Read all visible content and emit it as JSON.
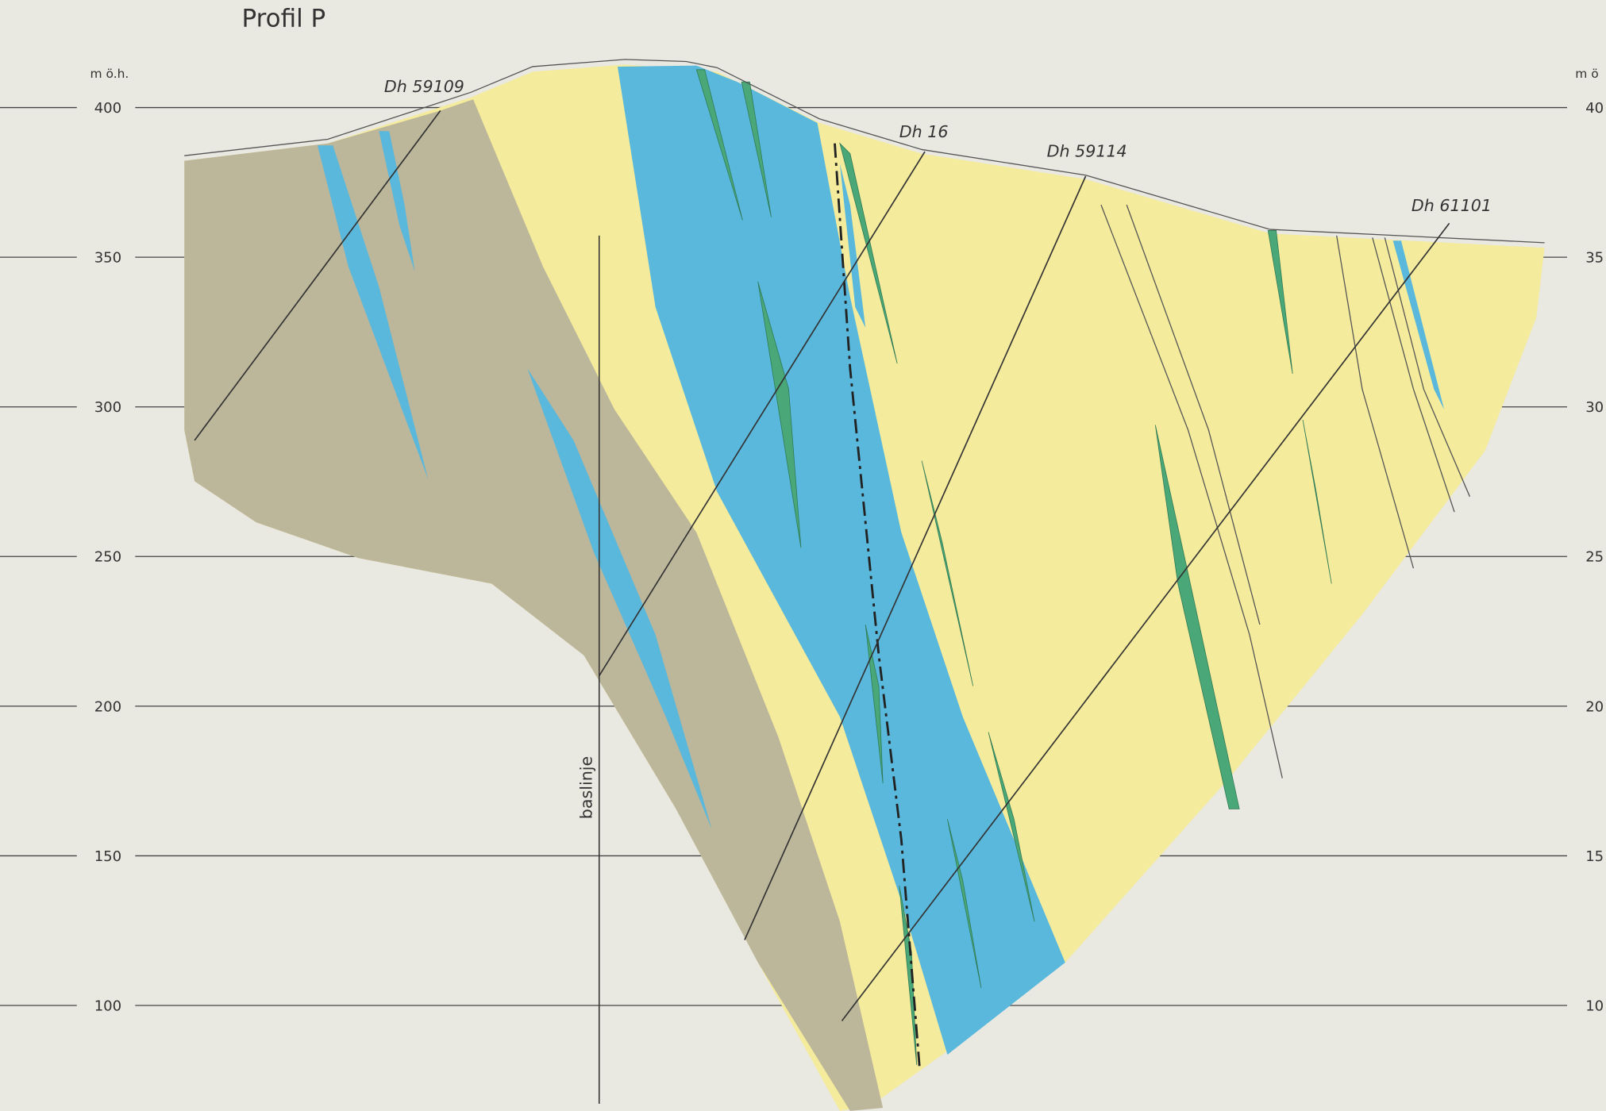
{
  "title": "Profil P",
  "left_axis": {
    "unit": "m ö.h.",
    "ticks": [
      400,
      350,
      300,
      250,
      200,
      150,
      100
    ]
  },
  "right_axis": {
    "unit": "m ö",
    "ticks": [
      "40",
      "35",
      "30",
      "25",
      "20",
      "15",
      "10"
    ]
  },
  "drillholes": [
    {
      "label": "Dh 59109"
    },
    {
      "label": "Dh 16"
    },
    {
      "label": "Dh 59114"
    },
    {
      "label": "Dh 61101"
    }
  ],
  "baseline": {
    "label": "baslinje"
  }
}
